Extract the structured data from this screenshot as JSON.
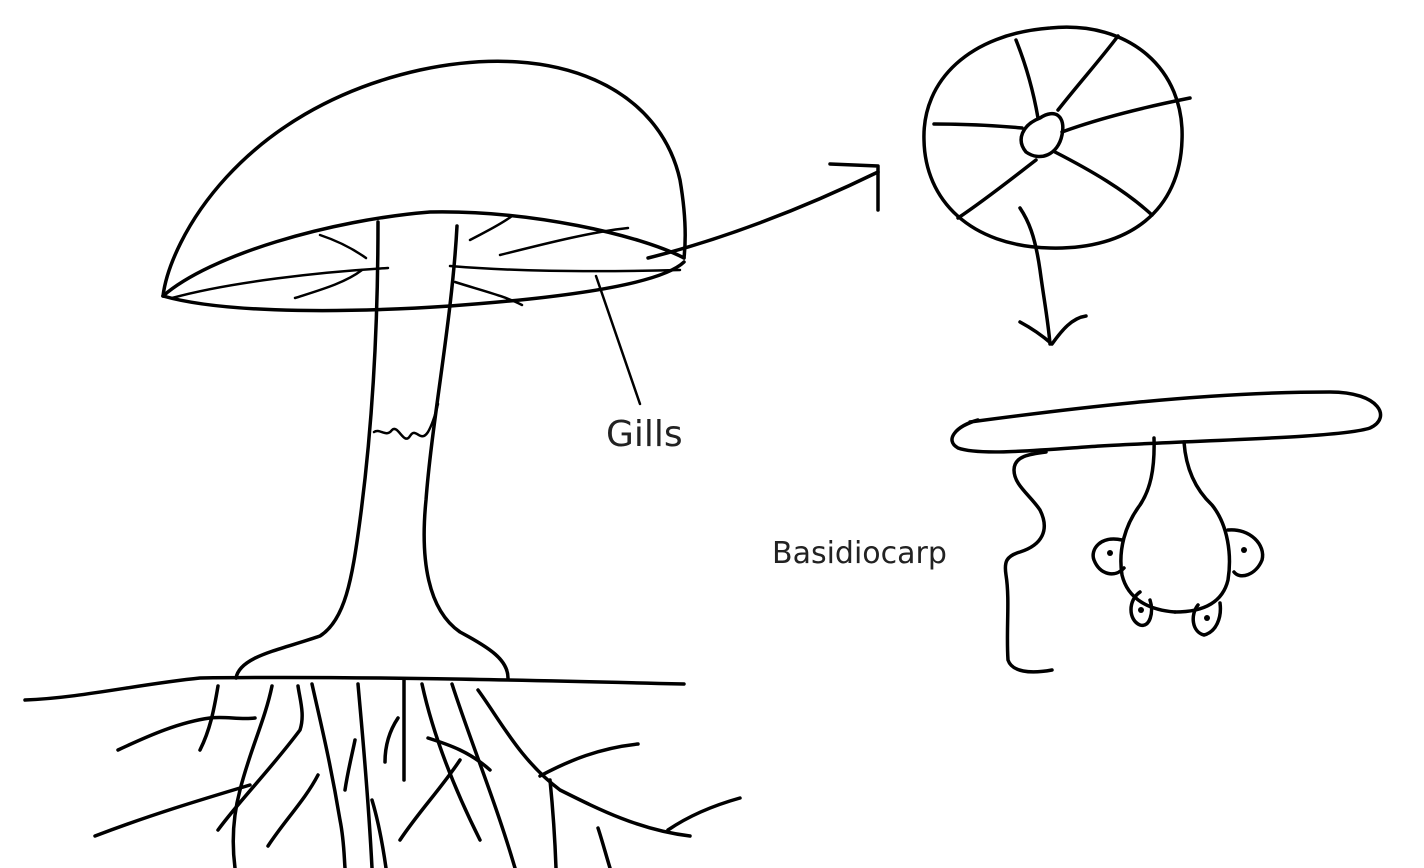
{
  "labels": {
    "gills": "Gills",
    "basidiocarp": "Basidiocarp"
  },
  "colors": {
    "ink": "#000000",
    "text": "#222222",
    "background": "#ffffff"
  }
}
